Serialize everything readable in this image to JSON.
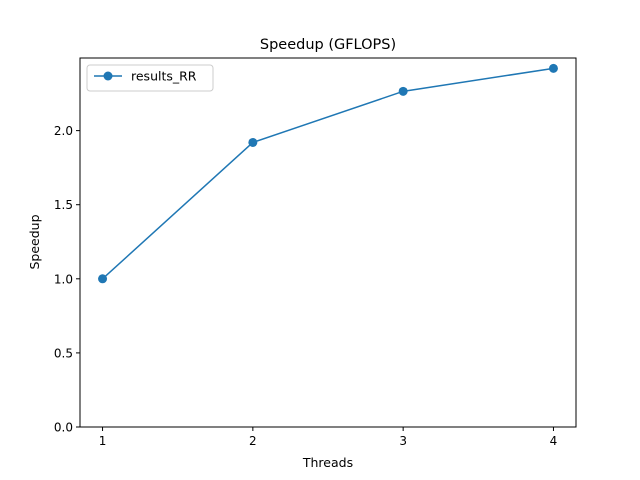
{
  "chart_data": {
    "type": "line",
    "title": "Speedup (GFLOPS)",
    "xlabel": "Threads",
    "ylabel": "Speedup",
    "x": [
      1,
      2,
      3,
      4
    ],
    "x_ticks": [
      "1",
      "2",
      "3",
      "4"
    ],
    "y_ticks": [
      "0.0",
      "0.5",
      "1.0",
      "1.5",
      "2.0"
    ],
    "xlim": [
      0.85,
      4.15
    ],
    "ylim": [
      0,
      2.49
    ],
    "grid": false,
    "legend_position": "upper left",
    "series": [
      {
        "name": "results_RR",
        "values": [
          1.0,
          1.92,
          2.265,
          2.42
        ],
        "color": "#1f77b4",
        "marker": "circle"
      }
    ]
  }
}
